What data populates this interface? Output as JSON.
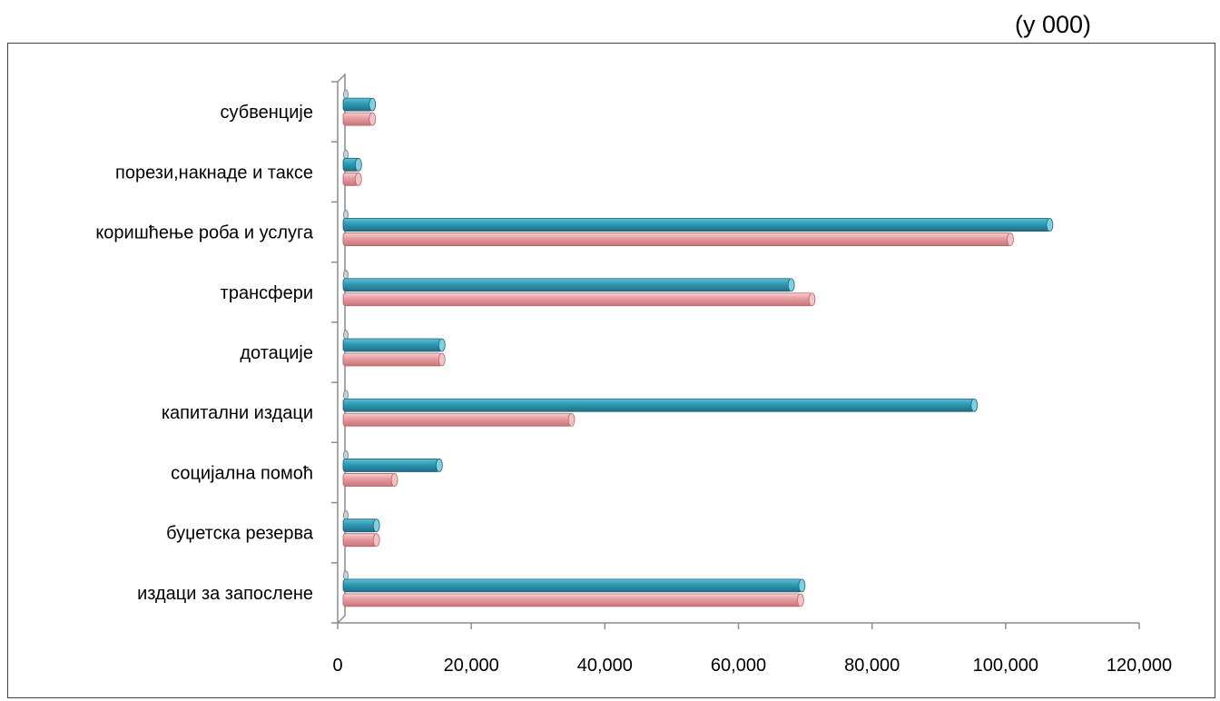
{
  "unit_label": "(у 000)",
  "chart_data": {
    "type": "bar",
    "orientation": "horizontal",
    "categories": [
      "издаци за запослене",
      "буџетска резерва",
      "социјална помоћ",
      "капитални издаци",
      "дотације",
      "трансфери",
      "коришћење роба и услуга",
      "порези,накнаде и таксе",
      "субвенције"
    ],
    "series": [
      {
        "values": [
          69300,
          5800,
          8500,
          35000,
          15600,
          71000,
          100700,
          3100,
          5200
        ],
        "color": "#e59a9f"
      },
      {
        "values": [
          69500,
          5800,
          15200,
          95300,
          15600,
          67900,
          106600,
          3100,
          5200
        ],
        "color": "#2f98b3"
      }
    ],
    "xlim": [
      0,
      120000
    ],
    "x_ticks": [
      "0",
      "20,000",
      "40,000",
      "60,000",
      "80,000",
      "100,000",
      "120,000"
    ],
    "x_tick_values": [
      0,
      20000,
      40000,
      60000,
      80000,
      100000,
      120000
    ],
    "grid": false,
    "legend": "none"
  }
}
